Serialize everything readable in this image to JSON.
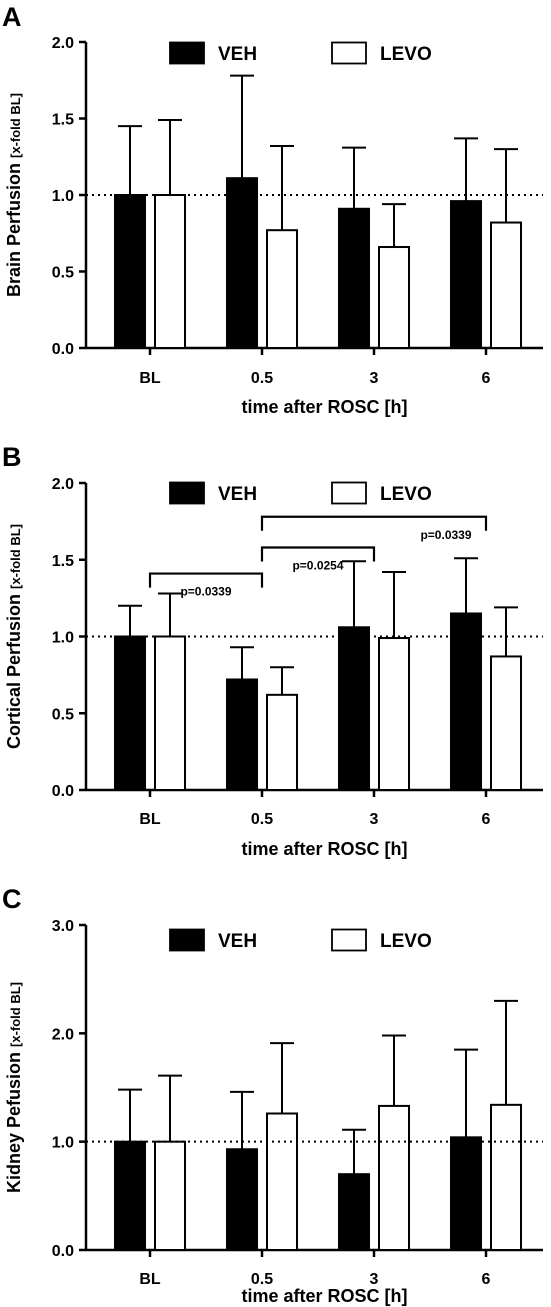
{
  "chart_data": [
    {
      "type": "bar",
      "panel_label": "A",
      "categories": [
        "BL",
        "0.5",
        "3",
        "6"
      ],
      "series": [
        {
          "name": "VEH",
          "values": [
            1.0,
            1.11,
            0.91,
            0.96
          ],
          "errors": [
            0.45,
            0.67,
            0.4,
            0.41
          ]
        },
        {
          "name": "LEVO",
          "values": [
            1.0,
            0.77,
            0.66,
            0.82
          ],
          "errors": [
            0.49,
            0.55,
            0.28,
            0.48
          ]
        }
      ],
      "xlabel": "time after ROSC [h]",
      "ylabel_main": "Brain Perfusion",
      "ylabel_unit": "[x-fold BL]",
      "ylim": [
        0,
        2.0
      ],
      "yticks": [
        "0.0",
        "0.5",
        "1.0",
        "1.5",
        "2.0"
      ],
      "reference_line": 1.0,
      "legend_position": "top",
      "significance": []
    },
    {
      "type": "bar",
      "panel_label": "B",
      "categories": [
        "BL",
        "0.5",
        "3",
        "6"
      ],
      "series": [
        {
          "name": "VEH",
          "values": [
            1.0,
            0.72,
            1.06,
            1.15
          ],
          "errors": [
            0.2,
            0.21,
            0.43,
            0.36
          ]
        },
        {
          "name": "LEVO",
          "values": [
            1.0,
            0.62,
            0.99,
            0.87
          ],
          "errors": [
            0.28,
            0.18,
            0.43,
            0.32
          ]
        }
      ],
      "xlabel": "time after ROSC [h]",
      "ylabel_main": "Cortical Perfusion",
      "ylabel_unit": "[x-fold BL]",
      "ylim": [
        0,
        2.0
      ],
      "yticks": [
        "0.0",
        "0.5",
        "1.0",
        "1.5",
        "2.0"
      ],
      "reference_line": 1.0,
      "legend_position": "top",
      "significance": [
        {
          "label": "p=0.0339",
          "from": "BL",
          "to": "0.5",
          "y": 1.41
        },
        {
          "label": "p=0.0254",
          "from": "0.5",
          "to": "3",
          "y": 1.58
        },
        {
          "label": "p=0.0339",
          "from": "0.5",
          "to": "6",
          "y": 1.78
        }
      ]
    },
    {
      "type": "bar",
      "panel_label": "C",
      "categories": [
        "BL",
        "0.5",
        "3",
        "6"
      ],
      "series": [
        {
          "name": "VEH",
          "values": [
            1.0,
            0.93,
            0.7,
            1.04
          ],
          "errors": [
            0.48,
            0.53,
            0.41,
            0.81
          ]
        },
        {
          "name": "LEVO",
          "values": [
            1.0,
            1.26,
            1.33,
            1.34
          ],
          "errors": [
            0.61,
            0.65,
            0.65,
            0.96
          ]
        }
      ],
      "xlabel": "time after ROSC [h]",
      "ylabel_main": "Kidney Pefusion",
      "ylabel_unit": "[x-fold BL]",
      "ylim": [
        0,
        3.0
      ],
      "yticks": [
        "0.0",
        "1.0",
        "2.0",
        "3.0"
      ],
      "reference_line": 1.0,
      "legend_position": "top",
      "significance": []
    }
  ]
}
